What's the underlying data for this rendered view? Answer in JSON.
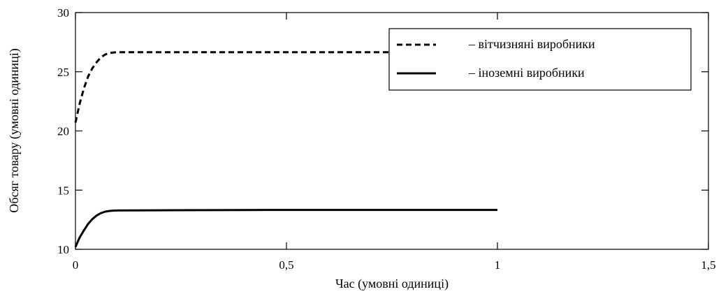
{
  "chart_data": {
    "type": "line",
    "xlabel": "Час (умовні одиниці)",
    "ylabel": "Обсяг товару (умовні одиниці)",
    "xlim": [
      0,
      1.5
    ],
    "ylim": [
      10,
      30
    ],
    "xticks": [
      0,
      0.5,
      1,
      1.5
    ],
    "xtick_labels": [
      "0",
      "0,5",
      "1",
      "1,5"
    ],
    "yticks": [
      10,
      15,
      20,
      25,
      30
    ],
    "ytick_labels": [
      "10",
      "15",
      "20",
      "25",
      "30"
    ],
    "grid": false,
    "legend_position": "top-right",
    "series": [
      {
        "name": "– вітчизняні виробники",
        "style": "dashed",
        "color": "#000000",
        "x": [
          0,
          0.005,
          0.01,
          0.02,
          0.03,
          0.04,
          0.05,
          0.06,
          0.07,
          0.08,
          0.09,
          0.1,
          0.2,
          0.4,
          0.6,
          0.8,
          1.0
        ],
        "y": [
          20.7,
          21.5,
          22.3,
          23.6,
          24.6,
          25.3,
          25.8,
          26.2,
          26.45,
          26.58,
          26.63,
          26.65,
          26.65,
          26.65,
          26.65,
          26.65,
          26.65
        ]
      },
      {
        "name": "– іноземні виробники",
        "style": "solid",
        "color": "#000000",
        "x": [
          0,
          0.005,
          0.01,
          0.02,
          0.03,
          0.04,
          0.05,
          0.06,
          0.07,
          0.08,
          0.09,
          0.1,
          0.2,
          0.4,
          0.6,
          0.8,
          1.0
        ],
        "y": [
          10.2,
          10.6,
          11.0,
          11.6,
          12.15,
          12.55,
          12.85,
          13.05,
          13.18,
          13.24,
          13.27,
          13.28,
          13.3,
          13.32,
          13.33,
          13.33,
          13.33
        ]
      }
    ]
  }
}
